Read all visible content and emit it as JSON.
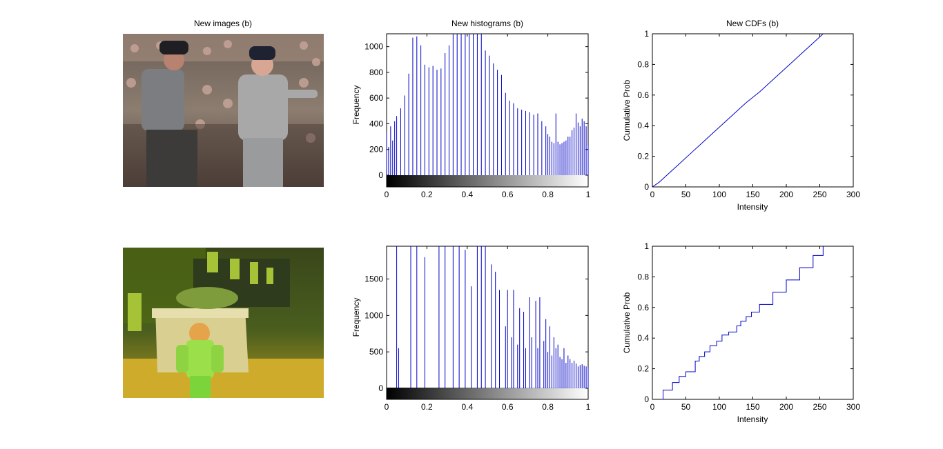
{
  "figure": {
    "titles": [
      "New images (b)",
      "New histograms (b)",
      "New CDFs (b)"
    ]
  },
  "colors": {
    "series": "#0000c8",
    "axis": "#000000"
  },
  "chart_data": [
    {
      "type": "bar",
      "panel": "histogram-top",
      "title": "New histograms (b)",
      "xlabel": "",
      "ylabel": "Frequency",
      "xlim": [
        0,
        1
      ],
      "ylim": [
        0,
        1100
      ],
      "xticks": [
        "0",
        "0.2",
        "0.4",
        "0.6",
        "0.8",
        "1"
      ],
      "yticks": [
        "0",
        "200",
        "400",
        "600",
        "800",
        "1000"
      ],
      "colorbar": "grayscale",
      "x": [
        0.0,
        0.01,
        0.02,
        0.03,
        0.04,
        0.05,
        0.07,
        0.09,
        0.11,
        0.13,
        0.15,
        0.17,
        0.19,
        0.21,
        0.23,
        0.25,
        0.27,
        0.29,
        0.31,
        0.33,
        0.35,
        0.37,
        0.39,
        0.41,
        0.43,
        0.45,
        0.47,
        0.49,
        0.51,
        0.53,
        0.55,
        0.57,
        0.59,
        0.61,
        0.63,
        0.65,
        0.67,
        0.69,
        0.71,
        0.73,
        0.75,
        0.77,
        0.79,
        0.8,
        0.81,
        0.82,
        0.83,
        0.84,
        0.85,
        0.86,
        0.87,
        0.88,
        0.89,
        0.9,
        0.91,
        0.92,
        0.93,
        0.94,
        0.95,
        0.96,
        0.97,
        0.98,
        0.99,
        1.0
      ],
      "values": [
        330,
        220,
        380,
        270,
        420,
        460,
        520,
        620,
        790,
        1070,
        1080,
        1010,
        860,
        840,
        850,
        820,
        830,
        950,
        1010,
        1100,
        1100,
        1100,
        1100,
        1100,
        1100,
        1100,
        1100,
        970,
        930,
        870,
        820,
        780,
        640,
        580,
        560,
        520,
        510,
        500,
        490,
        470,
        480,
        420,
        380,
        320,
        300,
        260,
        250,
        480,
        260,
        240,
        250,
        260,
        270,
        300,
        300,
        350,
        370,
        480,
        410,
        380,
        440,
        420,
        380,
        230
      ]
    },
    {
      "type": "line",
      "panel": "cdf-top",
      "title": "New CDFs (b)",
      "xlabel": "Intensity",
      "ylabel": "Cumulative Prob",
      "xlim": [
        0,
        300
      ],
      "ylim": [
        0,
        1
      ],
      "xticks": [
        "0",
        "50",
        "100",
        "150",
        "200",
        "250",
        "300"
      ],
      "yticks": [
        "0",
        "0.2",
        "0.4",
        "0.6",
        "0.8",
        "1"
      ],
      "x": [
        0,
        10,
        20,
        40,
        60,
        80,
        100,
        120,
        140,
        160,
        180,
        200,
        220,
        240,
        255
      ],
      "y": [
        0,
        0.03,
        0.07,
        0.15,
        0.23,
        0.31,
        0.39,
        0.47,
        0.55,
        0.62,
        0.7,
        0.78,
        0.86,
        0.94,
        1.0
      ]
    },
    {
      "type": "bar",
      "panel": "histogram-bottom",
      "title": "",
      "xlabel": "",
      "ylabel": "Frequency",
      "xlim": [
        0,
        1
      ],
      "ylim": [
        0,
        1950
      ],
      "xticks": [
        "0",
        "0.2",
        "0.4",
        "0.6",
        "0.8",
        "1"
      ],
      "yticks": [
        "0",
        "500",
        "1000",
        "1500"
      ],
      "colorbar": "grayscale",
      "x": [
        0.05,
        0.06,
        0.12,
        0.15,
        0.19,
        0.26,
        0.29,
        0.33,
        0.36,
        0.39,
        0.42,
        0.45,
        0.47,
        0.49,
        0.52,
        0.54,
        0.56,
        0.59,
        0.6,
        0.62,
        0.63,
        0.65,
        0.66,
        0.68,
        0.69,
        0.71,
        0.72,
        0.74,
        0.75,
        0.76,
        0.78,
        0.79,
        0.8,
        0.81,
        0.82,
        0.83,
        0.84,
        0.85,
        0.86,
        0.87,
        0.88,
        0.89,
        0.9,
        0.91,
        0.92,
        0.93,
        0.94,
        0.95,
        0.96,
        0.97,
        0.98,
        0.99,
        1.0
      ],
      "values": [
        1950,
        550,
        1950,
        1950,
        1800,
        1950,
        1950,
        1950,
        1950,
        1900,
        1400,
        1950,
        1950,
        1950,
        1700,
        1600,
        1350,
        850,
        1350,
        700,
        1350,
        600,
        1100,
        1050,
        550,
        1250,
        700,
        1200,
        550,
        1250,
        650,
        950,
        500,
        850,
        450,
        700,
        550,
        600,
        430,
        400,
        550,
        350,
        450,
        400,
        350,
        380,
        340,
        300,
        320,
        330,
        310,
        300,
        280
      ]
    },
    {
      "type": "line",
      "panel": "cdf-bottom",
      "title": "",
      "xlabel": "Intensity",
      "ylabel": "Cumulative Prob",
      "xlim": [
        0,
        300
      ],
      "ylim": [
        0,
        1
      ],
      "xticks": [
        "0",
        "50",
        "100",
        "150",
        "200",
        "250",
        "300"
      ],
      "yticks": [
        "0",
        "0.2",
        "0.4",
        "0.6",
        "0.8",
        "1"
      ],
      "step": true,
      "x": [
        14,
        16,
        30,
        40,
        50,
        64,
        70,
        78,
        86,
        96,
        104,
        114,
        126,
        132,
        140,
        148,
        160,
        180,
        200,
        220,
        240,
        255
      ],
      "y": [
        0,
        0.06,
        0.11,
        0.15,
        0.18,
        0.25,
        0.28,
        0.31,
        0.35,
        0.38,
        0.42,
        0.44,
        0.48,
        0.51,
        0.54,
        0.57,
        0.62,
        0.7,
        0.78,
        0.86,
        0.94,
        1.0
      ]
    }
  ]
}
